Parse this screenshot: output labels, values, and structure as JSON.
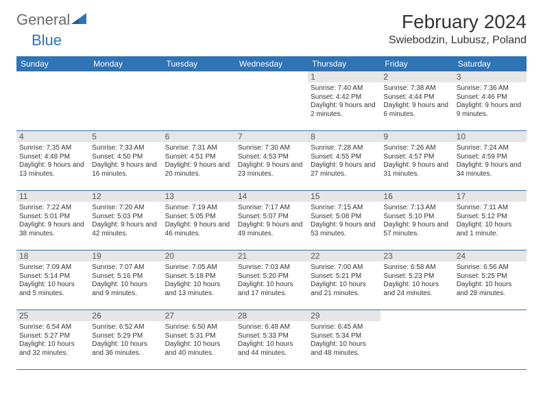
{
  "brand": {
    "name1": "General",
    "name2": "Blue",
    "name1_color": "#6b6b6b",
    "name2_color": "#2f74b5",
    "icon_color": "#2f74b5"
  },
  "title": "February 2024",
  "location": "Swiebodzin, Lubusz, Poland",
  "header_bg": "#2f74b5",
  "header_fg": "#ffffff",
  "daynum_bg": "#e6e6e6",
  "border_color": "#2f74b5",
  "weekdays": [
    "Sunday",
    "Monday",
    "Tuesday",
    "Wednesday",
    "Thursday",
    "Friday",
    "Saturday"
  ],
  "weeks": [
    [
      null,
      null,
      null,
      null,
      {
        "n": "1",
        "sr": "7:40 AM",
        "ss": "4:42 PM",
        "dl": "9 hours and 2 minutes."
      },
      {
        "n": "2",
        "sr": "7:38 AM",
        "ss": "4:44 PM",
        "dl": "9 hours and 6 minutes."
      },
      {
        "n": "3",
        "sr": "7:36 AM",
        "ss": "4:46 PM",
        "dl": "9 hours and 9 minutes."
      }
    ],
    [
      {
        "n": "4",
        "sr": "7:35 AM",
        "ss": "4:48 PM",
        "dl": "9 hours and 13 minutes."
      },
      {
        "n": "5",
        "sr": "7:33 AM",
        "ss": "4:50 PM",
        "dl": "9 hours and 16 minutes."
      },
      {
        "n": "6",
        "sr": "7:31 AM",
        "ss": "4:51 PM",
        "dl": "9 hours and 20 minutes."
      },
      {
        "n": "7",
        "sr": "7:30 AM",
        "ss": "4:53 PM",
        "dl": "9 hours and 23 minutes."
      },
      {
        "n": "8",
        "sr": "7:28 AM",
        "ss": "4:55 PM",
        "dl": "9 hours and 27 minutes."
      },
      {
        "n": "9",
        "sr": "7:26 AM",
        "ss": "4:57 PM",
        "dl": "9 hours and 31 minutes."
      },
      {
        "n": "10",
        "sr": "7:24 AM",
        "ss": "4:59 PM",
        "dl": "9 hours and 34 minutes."
      }
    ],
    [
      {
        "n": "11",
        "sr": "7:22 AM",
        "ss": "5:01 PM",
        "dl": "9 hours and 38 minutes."
      },
      {
        "n": "12",
        "sr": "7:20 AM",
        "ss": "5:03 PM",
        "dl": "9 hours and 42 minutes."
      },
      {
        "n": "13",
        "sr": "7:19 AM",
        "ss": "5:05 PM",
        "dl": "9 hours and 46 minutes."
      },
      {
        "n": "14",
        "sr": "7:17 AM",
        "ss": "5:07 PM",
        "dl": "9 hours and 49 minutes."
      },
      {
        "n": "15",
        "sr": "7:15 AM",
        "ss": "5:08 PM",
        "dl": "9 hours and 53 minutes."
      },
      {
        "n": "16",
        "sr": "7:13 AM",
        "ss": "5:10 PM",
        "dl": "9 hours and 57 minutes."
      },
      {
        "n": "17",
        "sr": "7:11 AM",
        "ss": "5:12 PM",
        "dl": "10 hours and 1 minute."
      }
    ],
    [
      {
        "n": "18",
        "sr": "7:09 AM",
        "ss": "5:14 PM",
        "dl": "10 hours and 5 minutes."
      },
      {
        "n": "19",
        "sr": "7:07 AM",
        "ss": "5:16 PM",
        "dl": "10 hours and 9 minutes."
      },
      {
        "n": "20",
        "sr": "7:05 AM",
        "ss": "5:18 PM",
        "dl": "10 hours and 13 minutes."
      },
      {
        "n": "21",
        "sr": "7:03 AM",
        "ss": "5:20 PM",
        "dl": "10 hours and 17 minutes."
      },
      {
        "n": "22",
        "sr": "7:00 AM",
        "ss": "5:21 PM",
        "dl": "10 hours and 21 minutes."
      },
      {
        "n": "23",
        "sr": "6:58 AM",
        "ss": "5:23 PM",
        "dl": "10 hours and 24 minutes."
      },
      {
        "n": "24",
        "sr": "6:56 AM",
        "ss": "5:25 PM",
        "dl": "10 hours and 28 minutes."
      }
    ],
    [
      {
        "n": "25",
        "sr": "6:54 AM",
        "ss": "5:27 PM",
        "dl": "10 hours and 32 minutes."
      },
      {
        "n": "26",
        "sr": "6:52 AM",
        "ss": "5:29 PM",
        "dl": "10 hours and 36 minutes."
      },
      {
        "n": "27",
        "sr": "6:50 AM",
        "ss": "5:31 PM",
        "dl": "10 hours and 40 minutes."
      },
      {
        "n": "28",
        "sr": "6:48 AM",
        "ss": "5:33 PM",
        "dl": "10 hours and 44 minutes."
      },
      {
        "n": "29",
        "sr": "6:45 AM",
        "ss": "5:34 PM",
        "dl": "10 hours and 48 minutes."
      },
      null,
      null
    ]
  ],
  "labels": {
    "sunrise": "Sunrise:",
    "sunset": "Sunset:",
    "daylight": "Daylight:"
  }
}
